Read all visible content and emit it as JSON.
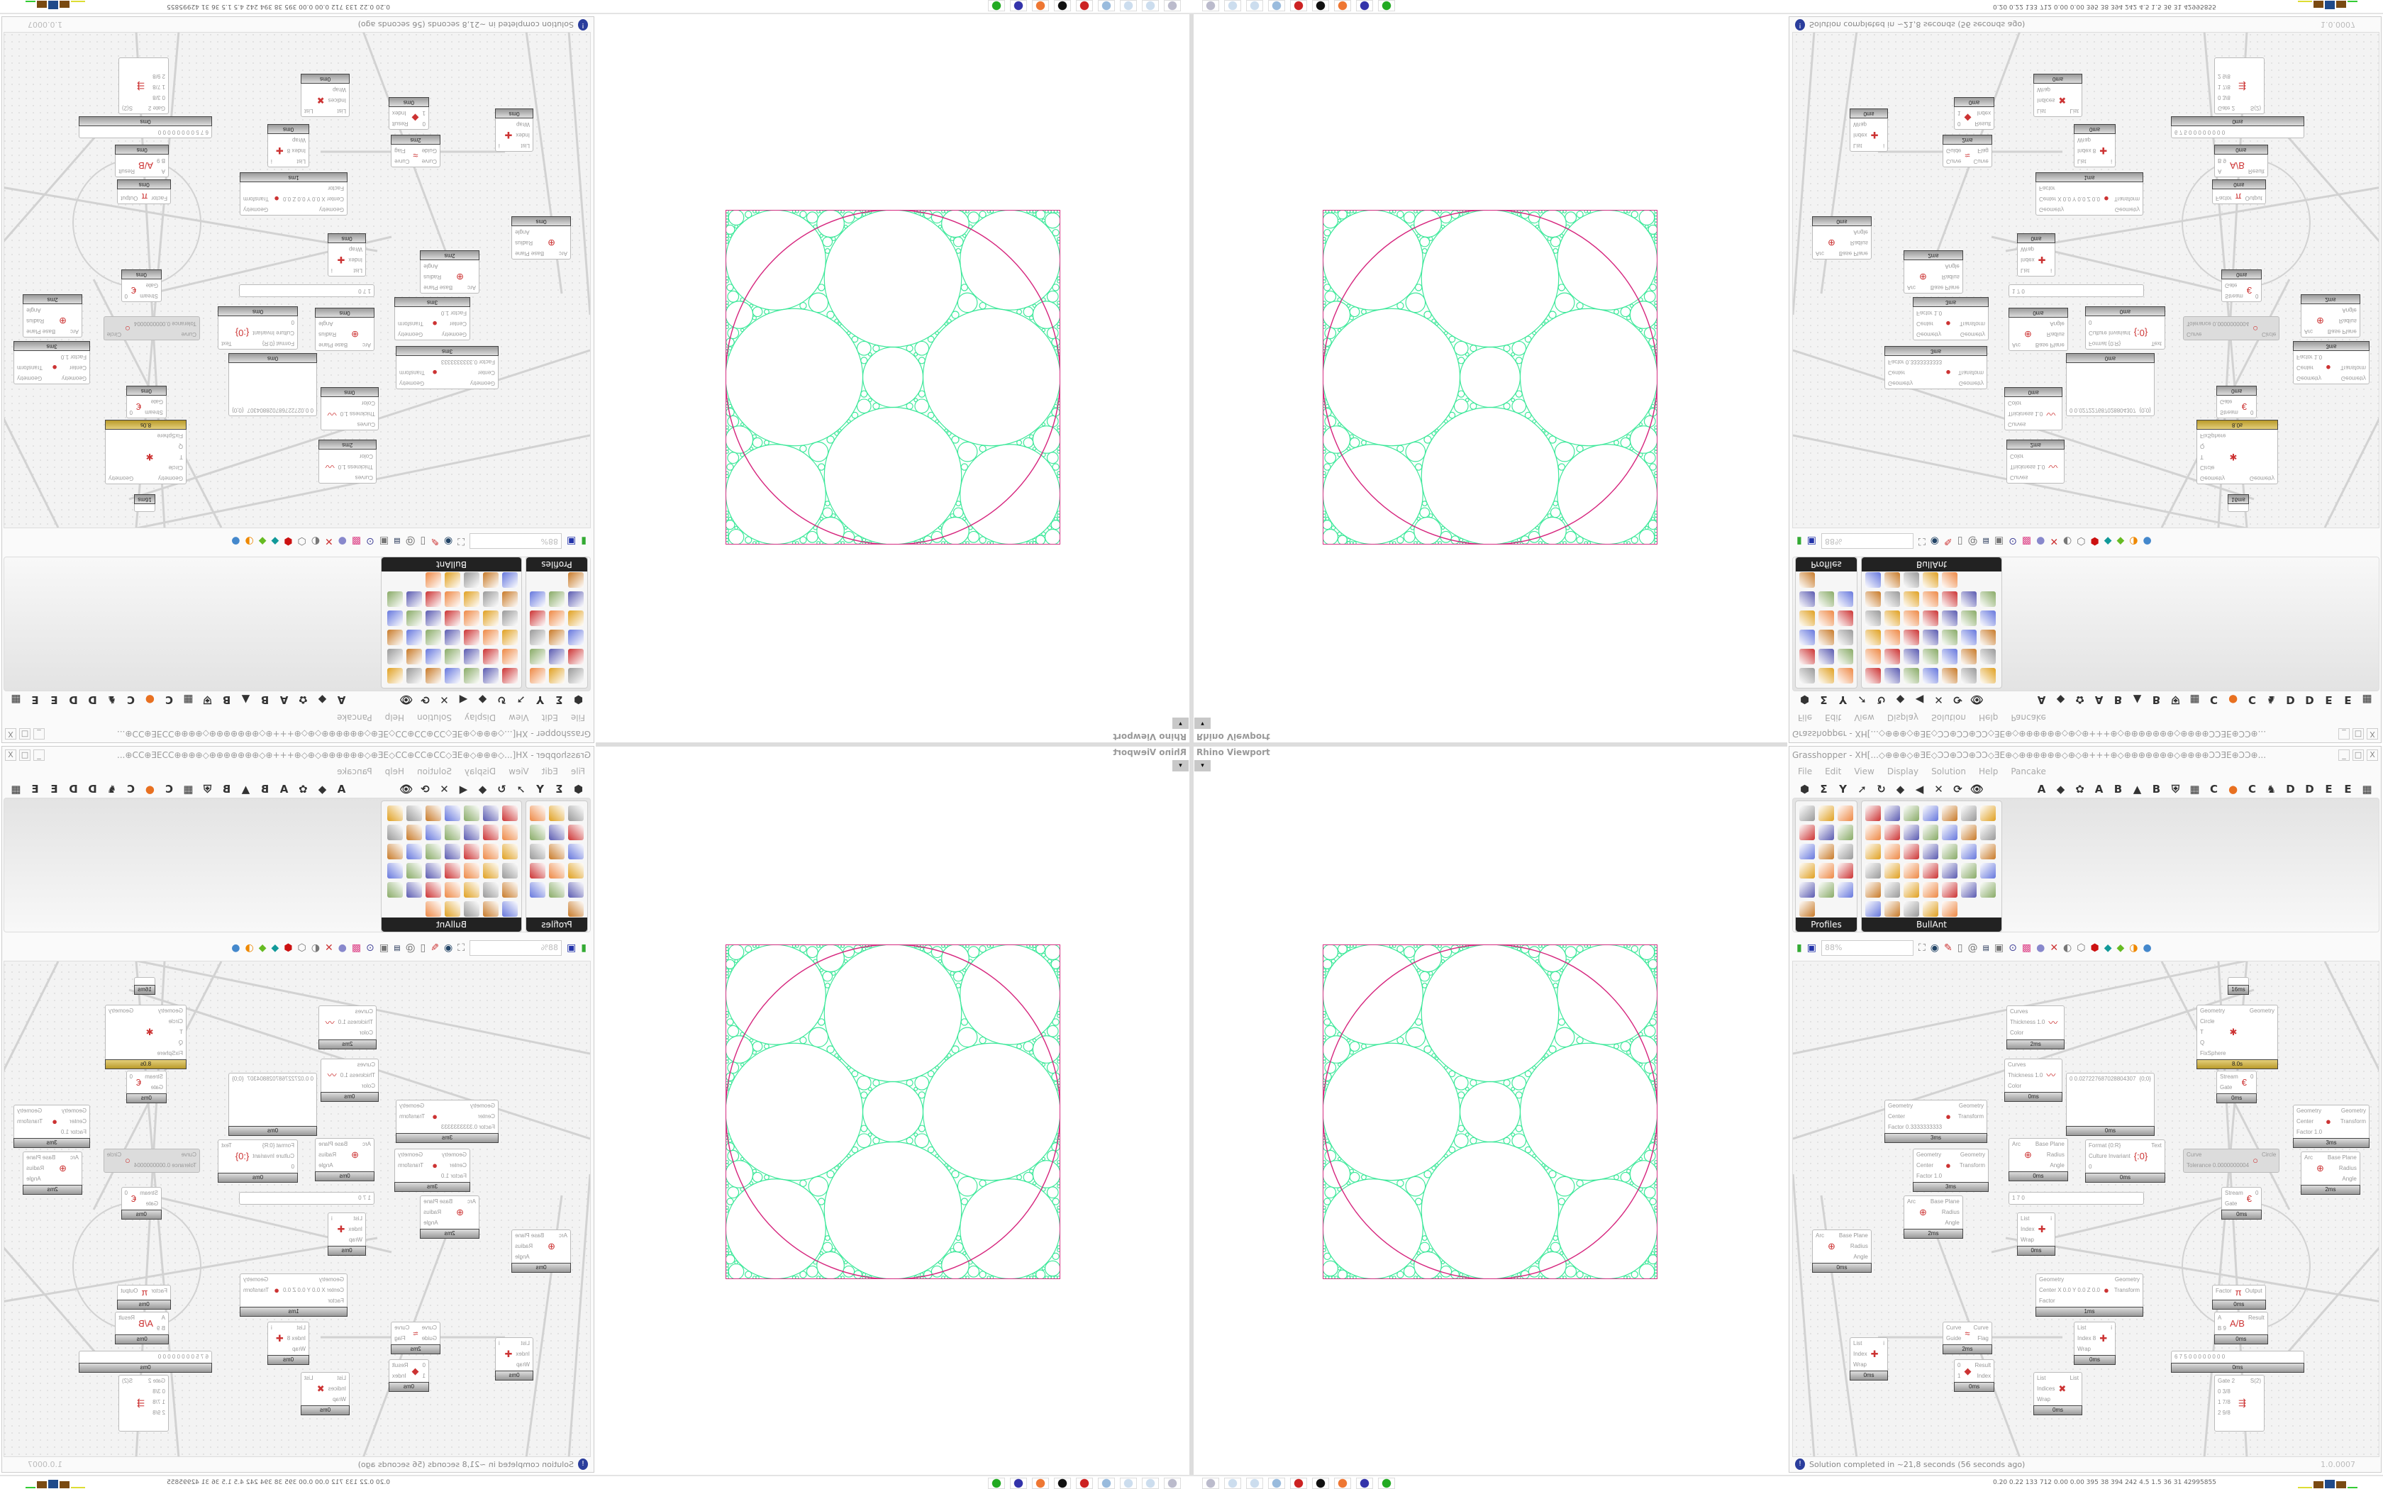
{
  "viewport": {
    "label": "Rhino Viewport",
    "dropdown": "▾"
  },
  "grasshopper": {
    "title": "Grasshopper - XH[...◇⊕⊕⊕◇⊕ƎE◇ƆƆ⊕ƆƆ⊕ƆƆ◇ƎE⊕◇⊕⊕⊕⊕⊕⊕◇⊕◇⊕+++⊕◇⊕⊕⊕⊕⊕⊕⊕◇⊕⊕⊕⊕ƆƆƎE⊕ƆƆ⊕...",
    "window_controls": [
      "_",
      "□",
      "X"
    ],
    "menu": [
      "File",
      "Edit",
      "View",
      "Display",
      "Solution",
      "Help",
      "Pancake"
    ],
    "ribbon_left": [
      "⬢",
      "Σ",
      "Y",
      "➚",
      "↻",
      "◆",
      "◀",
      "✕",
      "⟳",
      "👁"
    ],
    "ribbon_right": [
      "A",
      "◆",
      "✿",
      "A",
      "B",
      "▲",
      "B",
      "⛨",
      "▦",
      "C",
      "●",
      "C",
      "♞",
      "D",
      "D",
      "E",
      "E",
      "▦"
    ],
    "palettes": [
      {
        "label": "Profiles"
      },
      {
        "label": "BullAnt"
      }
    ],
    "zoom": "88%",
    "status": "Solution completed in ~21,8 seconds (56 seconds ago)",
    "version": "1.0.0007"
  },
  "canvas": {
    "nodes": [
      {
        "in": [
          "Curves",
          "Thickness 1.0",
          "Color"
        ],
        "out": [],
        "icon": "〰",
        "time": "2ms"
      },
      {
        "in": [
          "Curves",
          "Thickness 1.0",
          "Color"
        ],
        "out": [],
        "icon": "〰",
        "time": "0ms"
      },
      {
        "in": [
          "Geometry",
          "Circle",
          "T",
          "Q",
          "FixSphere"
        ],
        "out": [
          "Geometry"
        ],
        "icon": "✱",
        "time": "8.0s",
        "gold": true
      },
      {
        "in": [
          "Geometry",
          "Center",
          "Factor 0.3333333333"
        ],
        "out": [
          "Geometry",
          "Transform"
        ],
        "icon": "●",
        "time": "3ms"
      },
      {
        "in": [
          "Geometry",
          "Center",
          "Factor 1.0"
        ],
        "out": [
          "Geometry",
          "Transform"
        ],
        "icon": "●",
        "time": "3ms"
      },
      {
        "in": [
          "0 0.027227687028804307"
        ],
        "out": [
          "{0;0}"
        ],
        "icon": "",
        "time": "0ms"
      },
      {
        "in": [
          "Arc"
        ],
        "out": [
          "Base Plane",
          "Radius",
          "Angle"
        ],
        "icon": "⊕",
        "time": "0ms"
      },
      {
        "in": [
          "Format {0:R}",
          "Culture Invariant",
          "0"
        ],
        "out": [
          "Text"
        ],
        "icon": "{:0}",
        "time": "0ms"
      },
      {
        "in": [
          "Curve",
          "Tolerance 0.0000000004"
        ],
        "out": [
          "Circle"
        ],
        "icon": "○",
        "time": "",
        "disabled": true
      },
      {
        "in": [
          "Stream",
          "Gate"
        ],
        "out": [
          "0"
        ],
        "icon": "€",
        "time": "0ms"
      },
      {
        "in": [
          "Geometry",
          "Center",
          "Factor 1.0"
        ],
        "out": [
          "Geometry",
          "Transform"
        ],
        "icon": "●",
        "time": "3ms"
      },
      {
        "in": [
          "Arc"
        ],
        "out": [
          "Base Plane",
          "Radius",
          "Angle"
        ],
        "icon": "⊕",
        "time": "2ms"
      },
      {
        "in": [
          "Arc"
        ],
        "out": [
          "Base Plane",
          "Radius",
          "Angle"
        ],
        "icon": "⊕",
        "time": "2ms"
      },
      {
        "in": [
          "Arc"
        ],
        "out": [
          "Base Plane",
          "Radius",
          "Angle"
        ],
        "icon": "⊕",
        "time": "0ms"
      },
      {
        "in": [
          "List",
          "Index",
          "Wrap"
        ],
        "out": [
          "i"
        ],
        "icon": "✚",
        "time": "0ms"
      },
      {
        "in": [
          "Stream",
          "Gate"
        ],
        "out": [
          "0"
        ],
        "icon": "€",
        "time": "0ms"
      },
      {
        "in": [
          "Geometry",
          "Center X 0.0 Y 0.0 Z 0.0",
          "Factor"
        ],
        "out": [
          "Geometry",
          "Transform"
        ],
        "icon": "●",
        "time": "1ms"
      },
      {
        "in": [
          "Factor"
        ],
        "out": [
          "Output"
        ],
        "icon": "π",
        "time": "0ms"
      },
      {
        "in": [
          "A",
          "B 9"
        ],
        "out": [
          "Result"
        ],
        "icon": "A/B",
        "time": "0ms"
      },
      {
        "in": [
          "Curve",
          "Guide"
        ],
        "out": [
          "Curve",
          "Flag"
        ],
        "icon": "≈",
        "time": "2ms"
      },
      {
        "in": [
          "List",
          "Index 8",
          "Wrap"
        ],
        "out": [
          "i"
        ],
        "icon": "✚",
        "time": "0ms"
      },
      {
        "in": [
          "List",
          "Index",
          "Wrap"
        ],
        "out": [
          "i"
        ],
        "icon": "✚",
        "time": "0ms"
      },
      {
        "in": [
          "0",
          "1"
        ],
        "out": [
          "Result",
          "Index"
        ],
        "icon": "◆",
        "time": "0ms"
      },
      {
        "in": [
          "List",
          "Indices",
          "Wrap"
        ],
        "out": [
          "List"
        ],
        "icon": "✖",
        "time": "0ms"
      },
      {
        "in": [
          "6 7 5 0 0 0 0 0 0 0 0"
        ],
        "out": [],
        "icon": "",
        "time": "0ms"
      },
      {
        "in": [
          "Gate 2",
          "0 3/8",
          "1 7/8",
          "2 9/8"
        ],
        "out": [
          "S(2)"
        ],
        "icon": "⇶",
        "time": ""
      },
      {
        "in": [],
        "out": [],
        "icon": "",
        "time": "16ms"
      },
      {
        "in": [
          "1 7 0"
        ],
        "out": [],
        "icon": "",
        "time": ""
      }
    ]
  },
  "taskbar": {
    "tray_text": "0.20 0.22 133 712 0.00 0.00 395 38 394 242 4.5 1.5 36 31 42995855",
    "apps": [
      "notepad-stack",
      "notepad",
      "notepad",
      "calculator",
      "red-app",
      "wolf-app",
      "firefox",
      "floppy-64",
      "terminal"
    ]
  },
  "colors": {
    "circle_green": "#3de89a",
    "circle_pink": "#d6267e",
    "node_gold": "#c8a93a",
    "gh_info": "#2a3d9c"
  }
}
